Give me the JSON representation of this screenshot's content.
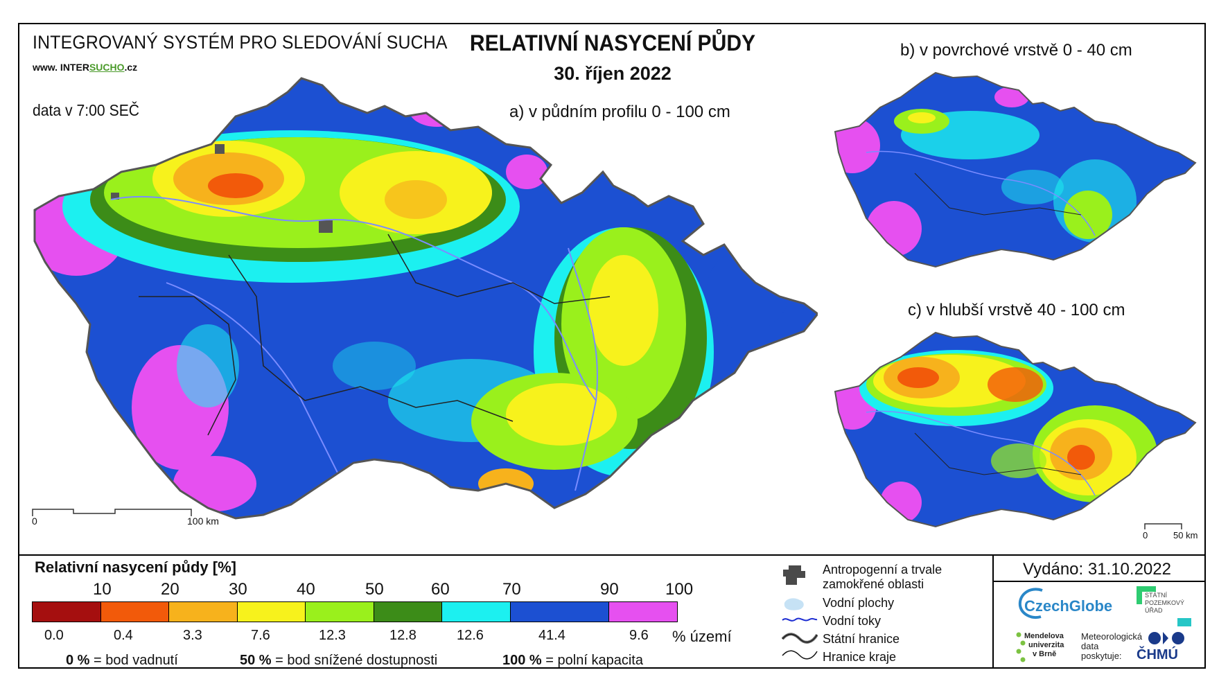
{
  "header": {
    "system_name": "INTEGROVANÝ SYSTÉM PRO SLEDOVÁNÍ SUCHA",
    "website_prefix": "www. INTER",
    "website_accent": "SUCHO",
    "website_suffix": ".cz",
    "data_time": "data v 7:00 SEČ",
    "title": "RELATIVNÍ NASYCENÍ PŮDY",
    "date": "30. říjen 2022"
  },
  "maps": {
    "main_label": "a) v půdním profilu 0 - 100 cm",
    "surface_label": "b) v povrchové vrstvě 0 - 40 cm",
    "deep_label": "c) v hlubší vrstvě 40 - 100 cm",
    "main_scale_start": "0",
    "main_scale_end": "100 km",
    "small_scale_start": "0",
    "small_scale_end": "50 km"
  },
  "legend": {
    "title": "Relativní nasycení půdy [%]",
    "ticks": [
      "10",
      "20",
      "30",
      "40",
      "50",
      "60",
      "70",
      "90",
      "100"
    ],
    "colors": [
      "#a50f0f",
      "#f25a0a",
      "#f7b21c",
      "#f7f21c",
      "#9af01c",
      "#3c8c18",
      "#1cf0f0",
      "#1c50d2",
      "#e650f0"
    ],
    "area_percent": [
      "0.0",
      "0.4",
      "3.3",
      "7.6",
      "12.3",
      "12.8",
      "12.6",
      "41.4",
      "9.6"
    ],
    "area_unit": "% území",
    "expl_0_value": "0 %",
    "expl_0_text": "= bod vadnutí",
    "expl_50_value": "50 %",
    "expl_50_text": "= bod snížené dostupnosti",
    "expl_100_value": "100 %",
    "expl_100_text": "= polní kapacita"
  },
  "map_legend": {
    "anthropogenic_line1": "Antropogenní a trvale",
    "anthropogenic_line2": "zamokřené oblasti",
    "water_areas": "Vodní plochy",
    "water_streams": "Vodní toky",
    "state_border": "Státní hranice",
    "region_border": "Hranice kraje"
  },
  "footer": {
    "issued": "Vydáno: 31.10.2022",
    "czechglobe": "CzechGlobe",
    "spu_line1": "STÁTNÍ",
    "spu_line2": "POZEMKOVÝ",
    "spu_line3": "ÚŘAD",
    "mendelu_line1": "Mendelova",
    "mendelu_line2": "univerzita",
    "mendelu_line3": "v Brně",
    "meteo_line1": "Meteorologická",
    "meteo_line2": "data",
    "meteo_line3": "poskytuje:",
    "chmu": "ČHMÚ"
  }
}
